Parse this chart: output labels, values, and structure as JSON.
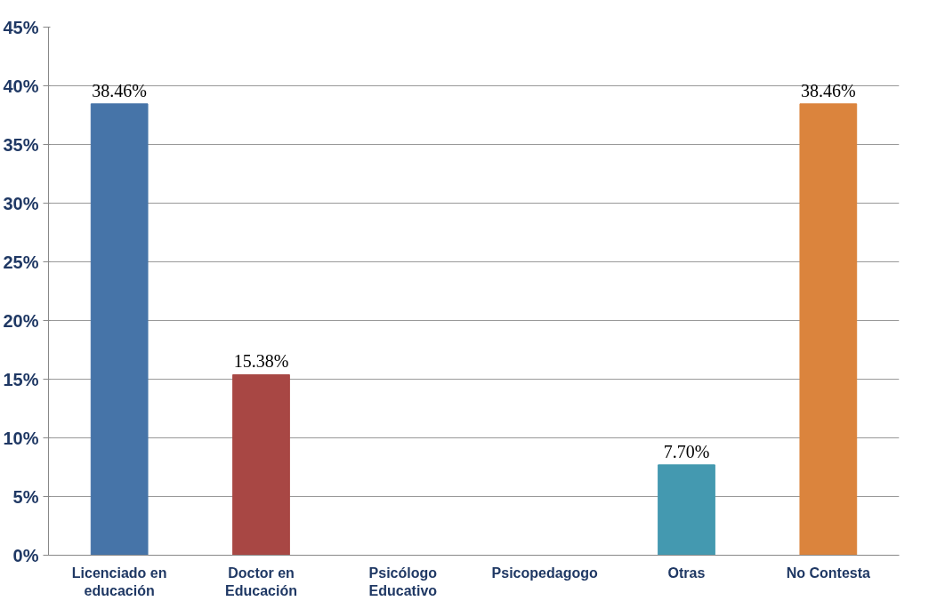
{
  "chart_data": {
    "type": "bar",
    "categories": [
      "Licenciado en educación",
      "Doctor en Educación",
      "Psicólogo Educativo",
      "Psicopedagogo",
      "Otras",
      "No Contesta"
    ],
    "values": [
      38.46,
      15.38,
      0,
      0,
      7.7,
      38.46
    ],
    "value_labels": [
      "38.46%",
      "15.38%",
      null,
      null,
      "7.70%",
      "38.46%"
    ],
    "colors": [
      "#4674a8",
      "#a84744",
      "#8aa74e",
      "#6f5792",
      "#4499b0",
      "#db843d"
    ],
    "ylim": [
      0,
      45
    ],
    "yticks": [
      {
        "value": 0,
        "label": "0%"
      },
      {
        "value": 5,
        "label": "5%"
      },
      {
        "value": 10,
        "label": "10%"
      },
      {
        "value": 15,
        "label": "15%"
      },
      {
        "value": 20,
        "label": "20%"
      },
      {
        "value": 25,
        "label": "25%"
      },
      {
        "value": 30,
        "label": "30%"
      },
      {
        "value": 35,
        "label": "35%"
      },
      {
        "value": 40,
        "label": "40%"
      },
      {
        "value": 45,
        "label": "45%"
      }
    ],
    "grid": "y"
  }
}
